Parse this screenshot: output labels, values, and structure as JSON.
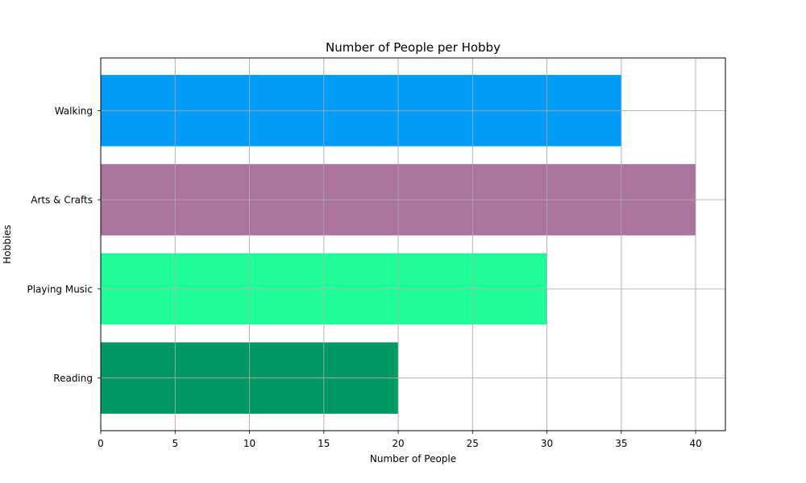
{
  "chart_data": {
    "type": "bar",
    "orientation": "horizontal",
    "title": "Number of People per Hobby",
    "xlabel": "Number of People",
    "ylabel": "Hobbies",
    "categories": [
      "Reading",
      "Playing Music",
      "Arts & Crafts",
      "Walking"
    ],
    "values": [
      20,
      30,
      40,
      35
    ],
    "colors": [
      "#009966",
      "#1ffd98",
      "#ab749c",
      "#009cf7"
    ],
    "xlim": [
      0,
      42
    ],
    "xticks": [
      0,
      5,
      10,
      15,
      20,
      25,
      30,
      35,
      40
    ],
    "grid": true
  }
}
